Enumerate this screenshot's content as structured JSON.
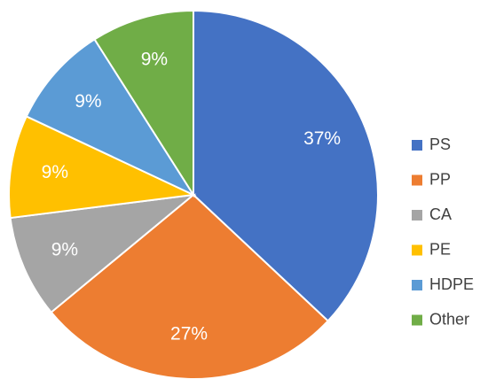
{
  "chart_data": {
    "type": "pie",
    "categories": [
      "PS",
      "PP",
      "CA",
      "PE",
      "HDPE",
      "Other"
    ],
    "values": [
      37,
      27,
      9,
      9,
      9,
      9
    ],
    "value_labels": [
      "37%",
      "27%",
      "9%",
      "9%",
      "9%",
      "9%"
    ],
    "colors": [
      "#4472c4",
      "#ed7d31",
      "#a5a5a5",
      "#ffc000",
      "#5b9bd5",
      "#70ad47"
    ],
    "legend": "right"
  }
}
